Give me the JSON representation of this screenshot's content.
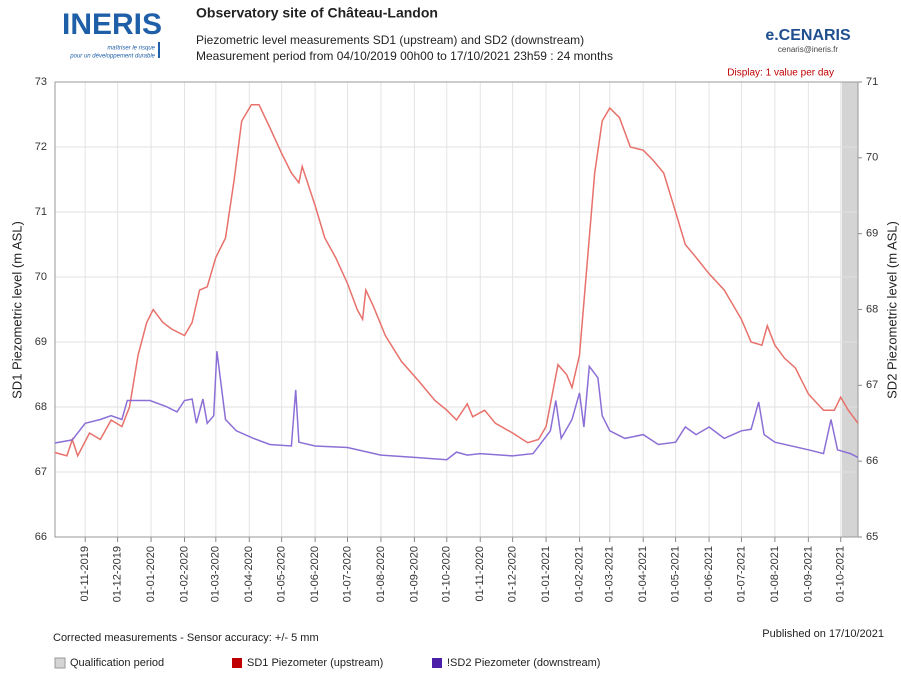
{
  "header": {
    "logo": "INERIS",
    "logo_tagline_1": "maîtriser le risque",
    "logo_tagline_2": "pour un développement durable",
    "brand": "e.CENARIS",
    "brand_email": "cenaris@ineris.fr"
  },
  "chart_data": {
    "type": "line",
    "title": "Observatory site of Château-Landon",
    "subtitle_1": "Piezometric level measurements SD1 (upstream) and SD2 (downstream)",
    "subtitle_2": "Measurement period from 04/10/2019 00h00 to 17/10/2021 23h59 : 24 months",
    "display_note": "Display: 1 value per day",
    "y_label": "SD1 Piezometric level (m ASL)",
    "y2_label": "SD2 Piezometric level (m ASL)",
    "xlim": [
      "04-10-2019",
      "17-10-2021"
    ],
    "xticks": [
      "01-11-2019",
      "01-12-2019",
      "01-01-2020",
      "01-02-2020",
      "01-03-2020",
      "01-04-2020",
      "01-05-2020",
      "01-06-2020",
      "01-07-2020",
      "01-08-2020",
      "01-09-2020",
      "01-10-2020",
      "01-11-2020",
      "01-12-2020",
      "01-01-2021",
      "01-02-2021",
      "01-03-2021",
      "01-04-2021",
      "01-05-2021",
      "01-06-2021",
      "01-07-2021",
      "01-08-2021",
      "01-09-2021",
      "01-10-2021"
    ],
    "ylim": [
      66,
      73
    ],
    "yticks": [
      66,
      67,
      68,
      69,
      70,
      71,
      72,
      73
    ],
    "y2lim": [
      65,
      71
    ],
    "y2ticks": [
      65,
      66,
      67,
      68,
      69,
      70,
      71
    ],
    "grid": true,
    "band_color": "#f2f2f2",
    "qualification_period": {
      "name": "Qualification period",
      "color": "#d4d4d4",
      "x": [
        "02-10-2021",
        "17-10-2021"
      ]
    },
    "series": [
      {
        "name": "SD1 Piezometer (upstream)",
        "color": "#e8716b",
        "legend_color": "#c00000",
        "x": [
          "04-10-2019",
          "15-10-2019",
          "20-10-2019",
          "25-10-2019",
          "05-11-2019",
          "15-11-2019",
          "25-11-2019",
          "05-12-2019",
          "12-12-2019",
          "20-12-2019",
          "28-12-2019",
          "03-01-2020",
          "12-01-2020",
          "20-01-2020",
          "01-02-2020",
          "08-02-2020",
          "15-02-2020",
          "22-02-2020",
          "01-03-2020",
          "10-03-2020",
          "18-03-2020",
          "25-03-2020",
          "03-04-2020",
          "10-04-2020",
          "20-04-2020",
          "01-05-2020",
          "10-05-2020",
          "17-05-2020",
          "20-05-2020",
          "01-06-2020",
          "10-06-2020",
          "20-06-2020",
          "01-07-2020",
          "10-07-2020",
          "15-07-2020",
          "18-07-2020",
          "25-07-2020",
          "05-08-2020",
          "20-08-2020",
          "05-09-2020",
          "20-09-2020",
          "01-10-2020",
          "10-10-2020",
          "20-10-2020",
          "25-10-2020",
          "05-11-2020",
          "15-11-2020",
          "01-12-2020",
          "15-12-2020",
          "25-12-2020",
          "01-01-2021",
          "08-01-2021",
          "12-01-2021",
          "20-01-2021",
          "25-01-2021",
          "01-02-2021",
          "08-02-2021",
          "15-02-2021",
          "22-02-2021",
          "01-03-2021",
          "10-03-2021",
          "20-03-2021",
          "01-04-2021",
          "10-04-2021",
          "20-04-2021",
          "01-05-2021",
          "10-05-2021",
          "20-05-2021",
          "01-06-2021",
          "15-06-2021",
          "01-07-2021",
          "10-07-2021",
          "20-07-2021",
          "25-07-2021",
          "01-08-2021",
          "10-08-2021",
          "20-08-2021",
          "01-09-2021",
          "15-09-2021",
          "25-09-2021",
          "01-10-2021",
          "08-10-2021",
          "17-10-2021"
        ],
        "values": [
          67.3,
          67.25,
          67.5,
          67.25,
          67.6,
          67.5,
          67.8,
          67.7,
          68.0,
          68.8,
          69.3,
          69.5,
          69.3,
          69.2,
          69.1,
          69.3,
          69.8,
          69.85,
          70.3,
          70.6,
          71.5,
          72.4,
          72.65,
          72.65,
          72.3,
          71.9,
          71.6,
          71.45,
          71.7,
          71.1,
          70.6,
          70.3,
          69.9,
          69.5,
          69.35,
          69.8,
          69.55,
          69.1,
          68.7,
          68.4,
          68.1,
          67.95,
          67.8,
          68.05,
          67.85,
          67.95,
          67.75,
          67.6,
          67.45,
          67.5,
          67.7,
          68.3,
          68.65,
          68.5,
          68.3,
          68.8,
          70.2,
          71.6,
          72.4,
          72.6,
          72.45,
          72.0,
          71.95,
          71.8,
          71.6,
          71.0,
          70.5,
          70.3,
          70.05,
          69.8,
          69.35,
          69.0,
          68.95,
          69.25,
          68.95,
          68.75,
          68.6,
          68.2,
          67.95,
          67.95,
          68.15,
          67.95,
          67.75
        ]
      },
      {
        "name": "!SD2 Piezometer (downstream)",
        "color": "#8c6fd6",
        "legend_color": "#4b1fa8",
        "axis": "y2",
        "x": [
          "04-10-2019",
          "20-10-2019",
          "01-11-2019",
          "15-11-2019",
          "25-11-2019",
          "05-12-2019",
          "10-12-2019",
          "31-12-2019",
          "15-01-2020",
          "25-01-2020",
          "01-02-2020",
          "08-02-2020",
          "12-02-2020",
          "18-02-2020",
          "22-02-2020",
          "28-02-2020",
          "02-03-2020",
          "06-03-2020",
          "10-03-2020",
          "20-03-2020",
          "05-04-2020",
          "20-04-2020",
          "10-05-2020",
          "14-05-2020",
          "17-05-2020",
          "01-06-2020",
          "01-07-2020",
          "01-08-2020",
          "01-09-2020",
          "01-10-2020",
          "10-10-2020",
          "20-10-2020",
          "01-11-2020",
          "01-12-2020",
          "20-12-2020",
          "05-01-2021",
          "10-01-2021",
          "15-01-2021",
          "25-01-2021",
          "01-02-2021",
          "05-02-2021",
          "10-02-2021",
          "18-02-2021",
          "22-02-2021",
          "01-03-2021",
          "15-03-2021",
          "01-04-2021",
          "15-04-2021",
          "01-05-2021",
          "10-05-2021",
          "20-05-2021",
          "01-06-2021",
          "15-06-2021",
          "01-07-2021",
          "10-07-2021",
          "17-07-2021",
          "22-07-2021",
          "01-08-2021",
          "01-09-2021",
          "15-09-2021",
          "22-09-2021",
          "28-09-2021",
          "10-10-2021",
          "17-10-2021"
        ],
        "values": [
          66.24,
          66.28,
          66.5,
          66.55,
          66.6,
          66.55,
          66.8,
          66.8,
          66.72,
          66.65,
          66.8,
          66.82,
          66.5,
          66.82,
          66.5,
          66.6,
          67.45,
          67.0,
          66.55,
          66.4,
          66.3,
          66.22,
          66.2,
          66.94,
          66.25,
          66.2,
          66.18,
          66.08,
          66.05,
          66.02,
          66.12,
          66.08,
          66.1,
          66.07,
          66.1,
          66.4,
          66.8,
          66.3,
          66.55,
          66.9,
          66.45,
          67.25,
          67.1,
          66.6,
          66.4,
          66.3,
          66.35,
          66.22,
          66.25,
          66.45,
          66.35,
          66.45,
          66.3,
          66.4,
          66.42,
          66.78,
          66.35,
          66.25,
          66.15,
          66.1,
          66.55,
          66.15,
          66.1,
          66.05
        ]
      }
    ]
  },
  "footer": {
    "note": "Corrected measurements - Sensor accuracy: +/- 5 mm",
    "published": "Published on 17/10/2021"
  }
}
